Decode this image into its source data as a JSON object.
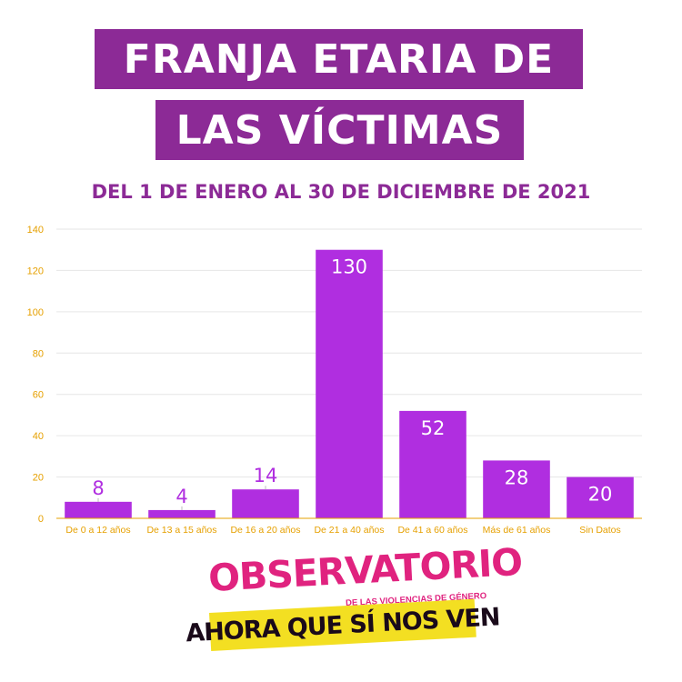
{
  "header": {
    "title_line1": "FRANJA ETARIA DE",
    "title_line2": "LAS VÍCTIMAS",
    "subtitle": "DEL 1 DE ENERO AL 30 DE DICIEMBRE DE 2021"
  },
  "colors": {
    "title_bg": "#8c2a96",
    "bar": "#b02ee0",
    "axis_ticks": "#e6a000",
    "logo_pink": "#e0237f",
    "logo_yellow": "#f3df22"
  },
  "chart_data": {
    "type": "bar",
    "title": "",
    "xlabel": "",
    "ylabel": "",
    "categories": [
      "De 0 a 12 años",
      "De 13 a 15 años",
      "De 16 a 20 años",
      "De 21 a 40 años",
      "De 41 a 60 años",
      "Más de 61 años",
      "Sin Datos"
    ],
    "values": [
      8,
      4,
      14,
      130,
      52,
      28,
      20
    ],
    "ylim": [
      0,
      140
    ],
    "yticks": [
      0,
      20,
      40,
      60,
      80,
      100,
      120,
      140
    ],
    "grid": true,
    "legend": "none"
  },
  "logo": {
    "word": "OBSERVATORIO",
    "subtitle": "DE LAS VIOLENCIAS DE GÉNERO",
    "slogan": "AHORA QUE SÍ NOS VEN",
    "icon": "lightning-icon"
  }
}
